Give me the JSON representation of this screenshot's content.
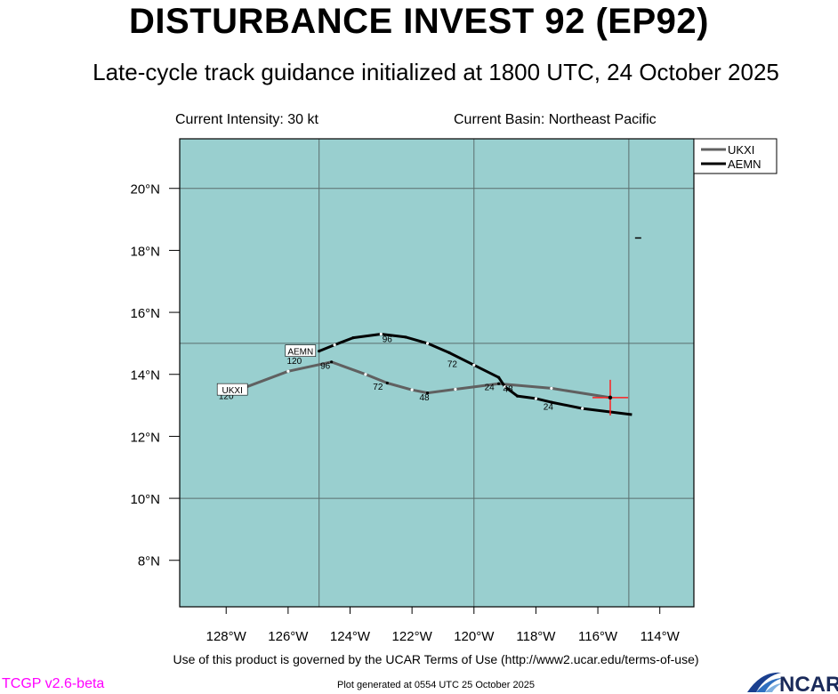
{
  "header": {
    "title": "DISTURBANCE INVEST 92 (EP92)",
    "subtitle": "Late-cycle track guidance initialized at 1800 UTC, 24 October 2025"
  },
  "info": {
    "intensity": "Current Intensity: 30 kt",
    "basin": "Current Basin: Northeast Pacific"
  },
  "footer": {
    "terms": "Use of this product is governed by the UCAR Terms of Use (http://www2.ucar.edu/terms-of-use)",
    "generated": "Plot generated at 0554 UTC   25 October 2025",
    "version": "TCGP v2.6-beta",
    "logo_text": "NCAR"
  },
  "colors": {
    "ocean": "#99cfcf",
    "version_text": "#ff00ff",
    "current_position": "#ff2020"
  },
  "map": {
    "lon_range": [
      -129.5,
      -112.9
    ],
    "lat_range": [
      6.5,
      21.6
    ],
    "lon_ticks": [
      -128,
      -126,
      -124,
      -122,
      -120,
      -118,
      -116,
      -114
    ],
    "lon_tick_labels": [
      "128°W",
      "126°W",
      "124°W",
      "122°W",
      "120°W",
      "118°W",
      "116°W",
      "114°W"
    ],
    "lat_ticks": [
      8,
      10,
      12,
      14,
      16,
      18,
      20
    ],
    "lat_tick_labels": [
      "8°N",
      "10°N",
      "12°N",
      "14°N",
      "16°N",
      "18°N",
      "20°N"
    ],
    "grid_lon": [
      -125,
      -120,
      -115
    ],
    "grid_lat": [
      10,
      15,
      20
    ],
    "current_position": {
      "lon": -115.6,
      "lat": 13.25
    }
  },
  "legend": {
    "placement": "top-right",
    "items": [
      {
        "name": "UKXI",
        "color": "#606060"
      },
      {
        "name": "AEMN",
        "color": "#000000"
      }
    ]
  },
  "tracks": [
    {
      "name": "UKXI",
      "color": "#606060",
      "points": [
        {
          "lon": -115.6,
          "lat": 13.25
        },
        {
          "lon": -117.5,
          "lat": 13.55
        },
        {
          "lon": -119.2,
          "lat": 13.7
        },
        {
          "lon": -120.6,
          "lat": 13.52
        },
        {
          "lon": -121.5,
          "lat": 13.4
        },
        {
          "lon": -122.0,
          "lat": 13.5
        },
        {
          "lon": -122.8,
          "lat": 13.72
        },
        {
          "lon": -123.5,
          "lat": 14.0
        },
        {
          "lon": -124.6,
          "lat": 14.4
        },
        {
          "lon": -126.0,
          "lat": 14.1
        },
        {
          "lon": -127.6,
          "lat": 13.5
        }
      ],
      "hour_labels": [
        {
          "text": "24",
          "lon": -119.5,
          "lat": 13.6
        },
        {
          "text": "48",
          "lon": -121.6,
          "lat": 13.28
        },
        {
          "text": "72",
          "lon": -123.1,
          "lat": 13.62
        },
        {
          "text": "96",
          "lon": -124.8,
          "lat": 14.3
        },
        {
          "text": "120",
          "lon": -128.0,
          "lat": 13.32
        }
      ],
      "end_label": {
        "text": "UKXI",
        "lon": -127.8,
        "lat": 13.5
      }
    },
    {
      "name": "AEMN",
      "color": "#000000",
      "points": [
        {
          "lon": -114.9,
          "lat": 12.7
        },
        {
          "lon": -116.5,
          "lat": 12.9
        },
        {
          "lon": -117.5,
          "lat": 13.1
        },
        {
          "lon": -118.0,
          "lat": 13.22
        },
        {
          "lon": -118.6,
          "lat": 13.3
        },
        {
          "lon": -119.0,
          "lat": 13.6
        },
        {
          "lon": -119.2,
          "lat": 13.9
        },
        {
          "lon": -120.0,
          "lat": 14.3
        },
        {
          "lon": -120.8,
          "lat": 14.7
        },
        {
          "lon": -121.5,
          "lat": 15.0
        },
        {
          "lon": -122.2,
          "lat": 15.2
        },
        {
          "lon": -123.0,
          "lat": 15.3
        },
        {
          "lon": -123.9,
          "lat": 15.18
        },
        {
          "lon": -124.5,
          "lat": 14.95
        },
        {
          "lon": -125.0,
          "lat": 14.75
        }
      ],
      "hour_labels": [
        {
          "text": "24",
          "lon": -117.6,
          "lat": 12.98
        },
        {
          "text": "48",
          "lon": -118.9,
          "lat": 13.55
        },
        {
          "text": "72",
          "lon": -120.7,
          "lat": 14.35
        },
        {
          "text": "96",
          "lon": -122.8,
          "lat": 15.15
        },
        {
          "text": "120",
          "lon": -125.8,
          "lat": 14.45
        }
      ],
      "end_label": {
        "text": "AEMN",
        "lon": -125.6,
        "lat": 14.75
      }
    }
  ]
}
